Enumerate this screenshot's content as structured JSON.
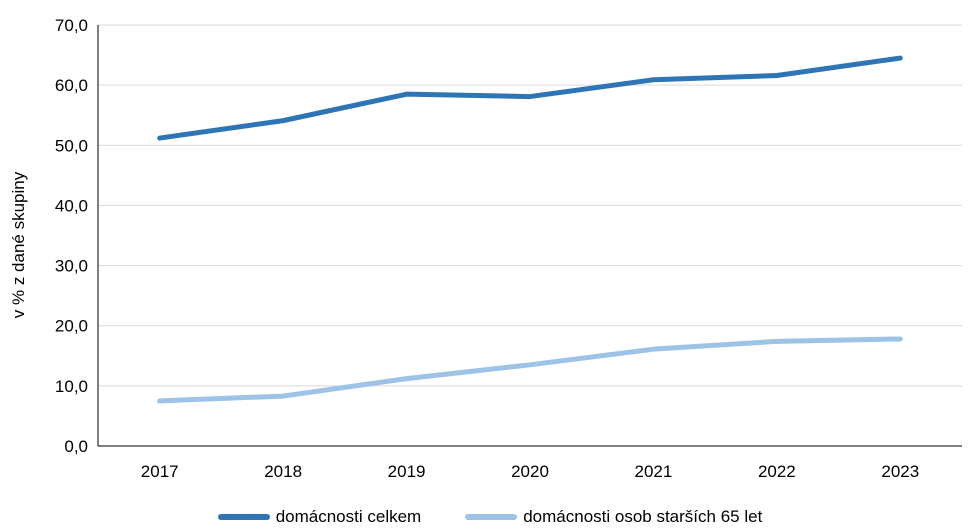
{
  "chart_data": {
    "type": "line",
    "ylabel": "v % z dané skupiny",
    "xlabel": "",
    "categories": [
      "2017",
      "2018",
      "2019",
      "2020",
      "2021",
      "2022",
      "2023"
    ],
    "ylim": [
      0,
      70
    ],
    "yticks": [
      "0,0",
      "10,0",
      "20,0",
      "30,0",
      "40,0",
      "50,0",
      "60,0",
      "70,0"
    ],
    "grid": true,
    "legend_position": "bottom",
    "series": [
      {
        "name": "domácnosti celkem",
        "color": "#2e75b6",
        "values": [
          51.2,
          54.1,
          58.5,
          58.1,
          60.9,
          61.6,
          64.5
        ]
      },
      {
        "name": "domácnosti osob starších 65 let",
        "color": "#9dc3e6",
        "values": [
          7.5,
          8.3,
          11.2,
          13.5,
          16.1,
          17.4,
          17.8
        ]
      }
    ]
  }
}
